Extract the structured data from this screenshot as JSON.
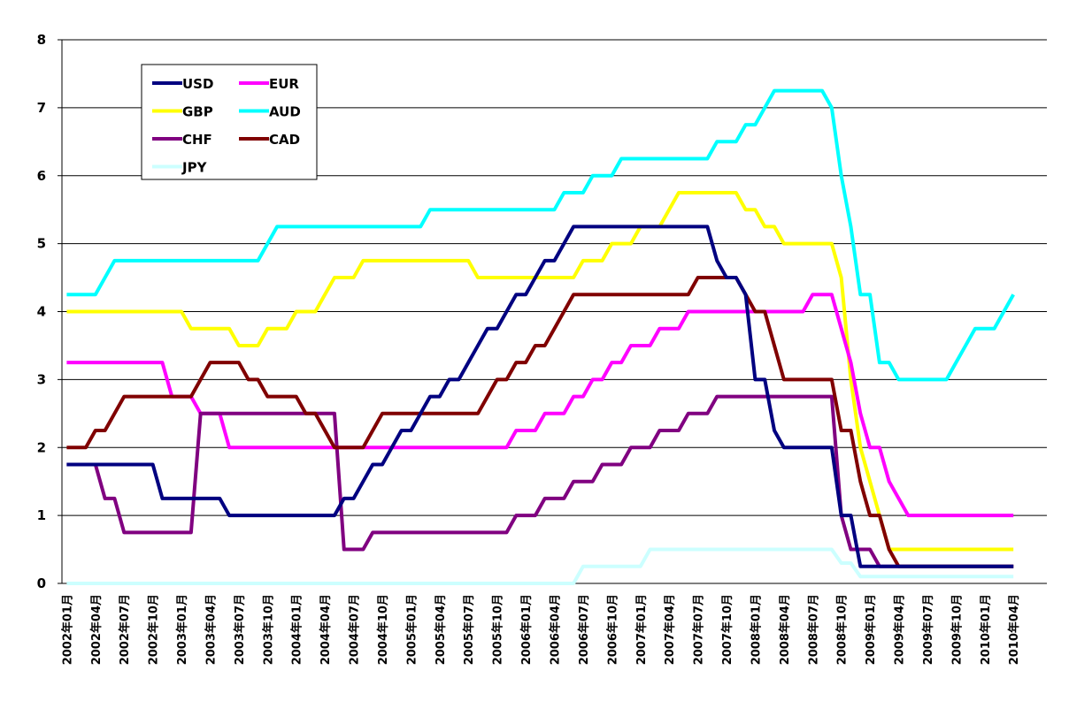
{
  "chart_data": {
    "type": "line",
    "categories": [
      "2002年01月",
      null,
      null,
      "2002年04月",
      null,
      null,
      "2002年07月",
      null,
      null,
      "2002年10月",
      null,
      null,
      "2003年01月",
      null,
      null,
      "2003年04月",
      null,
      null,
      "2003年07月",
      null,
      null,
      "2003年10月",
      null,
      null,
      "2004年01月",
      null,
      null,
      "2004年04月",
      null,
      null,
      "2004年07月",
      null,
      null,
      "2004年10月",
      null,
      null,
      "2005年01月",
      null,
      null,
      "2005年04月",
      null,
      null,
      "2005年07月",
      null,
      null,
      "2005年10月",
      null,
      null,
      "2006年01月",
      null,
      null,
      "2006年04月",
      null,
      null,
      "2006年07月",
      null,
      null,
      "2006年10月",
      null,
      null,
      "2007年01月",
      null,
      null,
      "2007年04月",
      null,
      null,
      "2007年07月",
      null,
      null,
      "2007年10月",
      null,
      null,
      "2008年01月",
      null,
      null,
      "2008年04月",
      null,
      null,
      "2008年07月",
      null,
      null,
      "2008年10月",
      null,
      null,
      "2009年01月",
      null,
      null,
      "2009年04月",
      null,
      null,
      "2009年07月",
      null,
      null,
      "2009年10月",
      null,
      null,
      "2010年01月",
      null,
      null,
      "2010年04月",
      null,
      null,
      null
    ],
    "series": [
      {
        "name": "USD",
        "color": "#000080",
        "values": [
          1.75,
          1.75,
          1.75,
          1.75,
          1.75,
          1.75,
          1.75,
          1.75,
          1.75,
          1.75,
          1.25,
          1.25,
          1.25,
          1.25,
          1.25,
          1.25,
          1.25,
          1,
          1,
          1,
          1,
          1,
          1,
          1,
          1,
          1,
          1,
          1,
          1,
          1.25,
          1.25,
          1.5,
          1.75,
          1.75,
          2,
          2.25,
          2.25,
          2.5,
          2.75,
          2.75,
          3,
          3,
          3.25,
          3.5,
          3.75,
          3.75,
          4,
          4.25,
          4.25,
          4.5,
          4.75,
          4.75,
          5,
          5.25,
          5.25,
          5.25,
          5.25,
          5.25,
          5.25,
          5.25,
          5.25,
          5.25,
          5.25,
          5.25,
          5.25,
          5.25,
          5.25,
          5.25,
          4.75,
          4.5,
          4.5,
          4.25,
          3,
          3,
          2.25,
          2,
          2,
          2,
          2,
          2,
          2,
          1,
          1,
          0.25,
          0.25,
          0.25,
          0.25,
          0.25,
          0.25,
          0.25,
          0.25,
          0.25,
          0.25,
          0.25,
          0.25,
          0.25,
          0.25,
          0.25,
          0.25,
          0.25,
          null,
          null,
          null
        ]
      },
      {
        "name": "EUR",
        "color": "#ff00ff",
        "values": [
          3.25,
          3.25,
          3.25,
          3.25,
          3.25,
          3.25,
          3.25,
          3.25,
          3.25,
          3.25,
          3.25,
          2.75,
          2.75,
          2.75,
          2.5,
          2.5,
          2.5,
          2,
          2,
          2,
          2,
          2,
          2,
          2,
          2,
          2,
          2,
          2,
          2,
          2,
          2,
          2,
          2,
          2,
          2,
          2,
          2,
          2,
          2,
          2,
          2,
          2,
          2,
          2,
          2,
          2,
          2,
          2.25,
          2.25,
          2.25,
          2.5,
          2.5,
          2.5,
          2.75,
          2.75,
          3,
          3,
          3.25,
          3.25,
          3.5,
          3.5,
          3.5,
          3.75,
          3.75,
          3.75,
          4,
          4,
          4,
          4,
          4,
          4,
          4,
          4,
          4,
          4,
          4,
          4,
          4,
          4.25,
          4.25,
          4.25,
          3.75,
          3.25,
          2.5,
          2,
          2,
          1.5,
          1.25,
          1,
          1,
          1,
          1,
          1,
          1,
          1,
          1,
          1,
          1,
          1,
          1,
          null,
          null,
          null
        ]
      },
      {
        "name": "GBP",
        "color": "#ffff00",
        "values": [
          4,
          4,
          4,
          4,
          4,
          4,
          4,
          4,
          4,
          4,
          4,
          4,
          4,
          3.75,
          3.75,
          3.75,
          3.75,
          3.75,
          3.5,
          3.5,
          3.5,
          3.75,
          3.75,
          3.75,
          4,
          4,
          4,
          4.25,
          4.5,
          4.5,
          4.5,
          4.75,
          4.75,
          4.75,
          4.75,
          4.75,
          4.75,
          4.75,
          4.75,
          4.75,
          4.75,
          4.75,
          4.75,
          4.5,
          4.5,
          4.5,
          4.5,
          4.5,
          4.5,
          4.5,
          4.5,
          4.5,
          4.5,
          4.5,
          4.75,
          4.75,
          4.75,
          5,
          5,
          5,
          5.25,
          5.25,
          5.25,
          5.5,
          5.75,
          5.75,
          5.75,
          5.75,
          5.75,
          5.75,
          5.75,
          5.5,
          5.5,
          5.25,
          5.25,
          5,
          5,
          5,
          5,
          5,
          5,
          4.5,
          3,
          2,
          1.5,
          1,
          0.5,
          0.5,
          0.5,
          0.5,
          0.5,
          0.5,
          0.5,
          0.5,
          0.5,
          0.5,
          0.5,
          0.5,
          0.5,
          0.5,
          null,
          null,
          null
        ]
      },
      {
        "name": "AUD",
        "color": "#00ffff",
        "values": [
          4.25,
          4.25,
          4.25,
          4.25,
          4.5,
          4.75,
          4.75,
          4.75,
          4.75,
          4.75,
          4.75,
          4.75,
          4.75,
          4.75,
          4.75,
          4.75,
          4.75,
          4.75,
          4.75,
          4.75,
          4.75,
          5,
          5.25,
          5.25,
          5.25,
          5.25,
          5.25,
          5.25,
          5.25,
          5.25,
          5.25,
          5.25,
          5.25,
          5.25,
          5.25,
          5.25,
          5.25,
          5.25,
          5.5,
          5.5,
          5.5,
          5.5,
          5.5,
          5.5,
          5.5,
          5.5,
          5.5,
          5.5,
          5.5,
          5.5,
          5.5,
          5.5,
          5.75,
          5.75,
          5.75,
          6,
          6,
          6,
          6.25,
          6.25,
          6.25,
          6.25,
          6.25,
          6.25,
          6.25,
          6.25,
          6.25,
          6.25,
          6.5,
          6.5,
          6.5,
          6.75,
          6.75,
          7,
          7.25,
          7.25,
          7.25,
          7.25,
          7.25,
          7.25,
          7,
          6,
          5.25,
          4.25,
          4.25,
          3.25,
          3.25,
          3,
          3,
          3,
          3,
          3,
          3,
          3.25,
          3.5,
          3.75,
          3.75,
          3.75,
          4,
          4.25,
          null,
          null,
          null
        ]
      },
      {
        "name": "CHF",
        "color": "#800080",
        "values": [
          1.75,
          1.75,
          1.75,
          1.75,
          1.25,
          1.25,
          0.75,
          0.75,
          0.75,
          0.75,
          0.75,
          0.75,
          0.75,
          0.75,
          2.5,
          2.5,
          2.5,
          2.5,
          2.5,
          2.5,
          2.5,
          2.5,
          2.5,
          2.5,
          2.5,
          2.5,
          2.5,
          2.5,
          2.5,
          0.5,
          0.5,
          0.5,
          0.75,
          0.75,
          0.75,
          0.75,
          0.75,
          0.75,
          0.75,
          0.75,
          0.75,
          0.75,
          0.75,
          0.75,
          0.75,
          0.75,
          0.75,
          1,
          1,
          1,
          1.25,
          1.25,
          1.25,
          1.5,
          1.5,
          1.5,
          1.75,
          1.75,
          1.75,
          2,
          2,
          2,
          2.25,
          2.25,
          2.25,
          2.5,
          2.5,
          2.5,
          2.75,
          2.75,
          2.75,
          2.75,
          2.75,
          2.75,
          2.75,
          2.75,
          2.75,
          2.75,
          2.75,
          2.75,
          2.75,
          1,
          0.5,
          0.5,
          0.5,
          0.25,
          0.25,
          0.25,
          0.25,
          0.25,
          0.25,
          0.25,
          0.25,
          0.25,
          0.25,
          0.25,
          0.25,
          0.25,
          0.25,
          0.25,
          null,
          null,
          null
        ]
      },
      {
        "name": "CAD",
        "color": "#800000",
        "values": [
          2,
          2,
          2,
          2.25,
          2.25,
          2.5,
          2.75,
          2.75,
          2.75,
          2.75,
          2.75,
          2.75,
          2.75,
          2.75,
          3,
          3.25,
          3.25,
          3.25,
          3.25,
          3,
          3,
          2.75,
          2.75,
          2.75,
          2.75,
          2.5,
          2.5,
          2.25,
          2,
          2,
          2,
          2,
          2.25,
          2.5,
          2.5,
          2.5,
          2.5,
          2.5,
          2.5,
          2.5,
          2.5,
          2.5,
          2.5,
          2.5,
          2.75,
          3,
          3,
          3.25,
          3.25,
          3.5,
          3.5,
          3.75,
          4,
          4.25,
          4.25,
          4.25,
          4.25,
          4.25,
          4.25,
          4.25,
          4.25,
          4.25,
          4.25,
          4.25,
          4.25,
          4.25,
          4.5,
          4.5,
          4.5,
          4.5,
          4.5,
          4.25,
          4,
          4,
          3.5,
          3,
          3,
          3,
          3,
          3,
          3,
          2.25,
          2.25,
          1.5,
          1,
          1,
          0.5,
          0.25,
          0.25,
          0.25,
          0.25,
          0.25,
          0.25,
          0.25,
          0.25,
          0.25,
          0.25,
          0.25,
          0.25,
          0.25,
          null,
          null,
          null
        ]
      },
      {
        "name": "JPY",
        "color": "#ccffff",
        "values": [
          0,
          0,
          0,
          0,
          0,
          0,
          0,
          0,
          0,
          0,
          0,
          0,
          0,
          0,
          0,
          0,
          0,
          0,
          0,
          0,
          0,
          0,
          0,
          0,
          0,
          0,
          0,
          0,
          0,
          0,
          0,
          0,
          0,
          0,
          0,
          0,
          0,
          0,
          0,
          0,
          0,
          0,
          0,
          0,
          0,
          0,
          0,
          0,
          0,
          0,
          0,
          0,
          0,
          0,
          0.25,
          0.25,
          0.25,
          0.25,
          0.25,
          0.25,
          0.25,
          0.5,
          0.5,
          0.5,
          0.5,
          0.5,
          0.5,
          0.5,
          0.5,
          0.5,
          0.5,
          0.5,
          0.5,
          0.5,
          0.5,
          0.5,
          0.5,
          0.5,
          0.5,
          0.5,
          0.5,
          0.3,
          0.3,
          0.1,
          0.1,
          0.1,
          0.1,
          0.1,
          0.1,
          0.1,
          0.1,
          0.1,
          0.1,
          0.1,
          0.1,
          0.1,
          0.1,
          0.1,
          0.1,
          0.1,
          null,
          null,
          null
        ]
      }
    ],
    "ylim": [
      0,
      8
    ],
    "yticks": [
      0,
      1,
      2,
      3,
      4,
      5,
      6,
      7,
      8
    ],
    "grid": true,
    "legend": "upper left"
  }
}
